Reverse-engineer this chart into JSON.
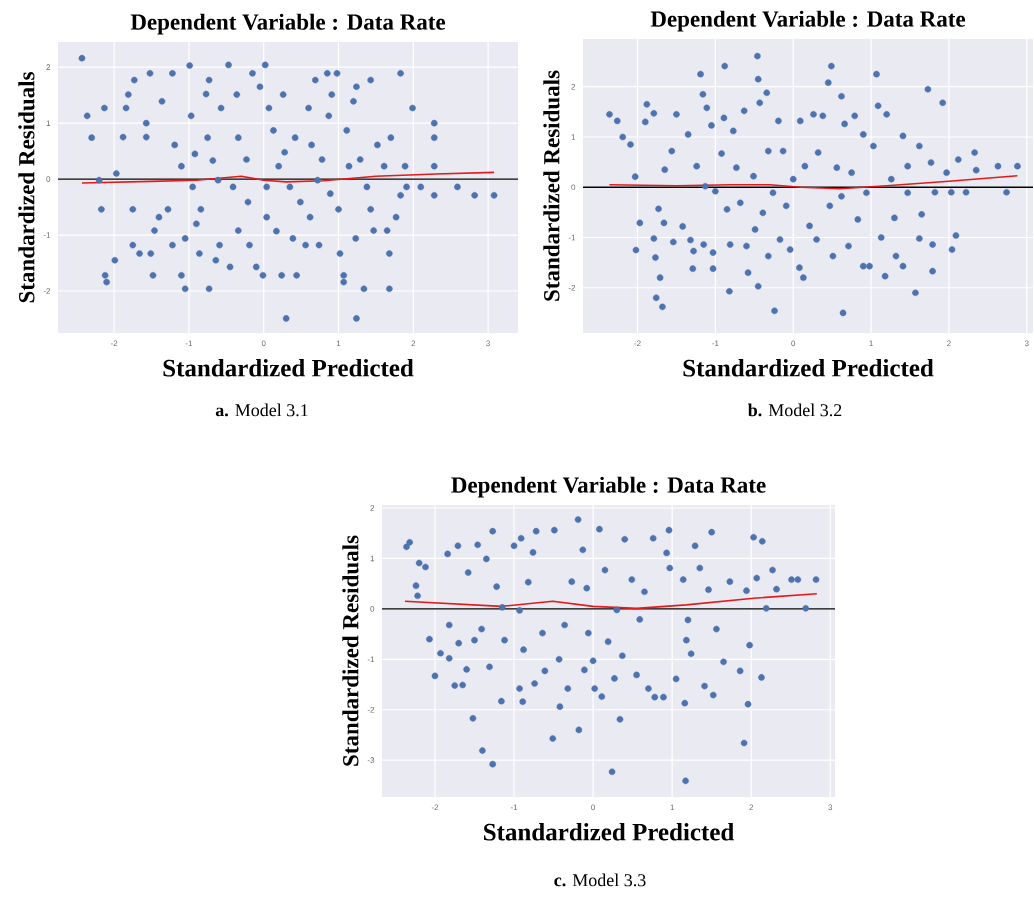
{
  "chart_data": [
    {
      "type": "scatter",
      "title": "Dependent Variable : Data Rate",
      "xlabel": "Standardized Predicted",
      "ylabel": "Standardized Residuals",
      "annotations": [
        "**a.** Model 3.1"
      ],
      "xlim": [
        -2.75,
        3.4
      ],
      "ylim": [
        -2.75,
        2.45
      ],
      "xticks": [
        -2,
        -1,
        0,
        1,
        2,
        3
      ],
      "yticks": [
        -2,
        -1,
        0,
        1,
        2
      ],
      "grid": true,
      "ref_lines": [
        {
          "axis": "y",
          "value": 0,
          "color": "#000000"
        }
      ],
      "series": [
        {
          "color": "#4c72b0",
          "marker": "circle",
          "x": [
            -2.43,
            -2.36,
            -2.3,
            -2.2,
            -2.17,
            -2.13,
            -2.12,
            -2.1,
            -1.99,
            -1.97,
            -1.88,
            -1.84,
            -1.81,
            -1.75,
            -1.73,
            -1.75,
            -1.66,
            -1.57,
            -1.57,
            -1.52,
            -1.51,
            -1.48,
            -1.46,
            -1.4,
            -1.36,
            -1.28,
            -1.22,
            -1.19,
            -1.22,
            -1.1,
            -1.1,
            -1.05,
            -1.05,
            -0.99,
            -0.97,
            -0.95,
            -0.92,
            -0.9,
            -0.86,
            -0.84,
            -0.77,
            -0.75,
            -0.73,
            -0.73,
            -0.68,
            -0.64,
            -0.61,
            -0.59,
            -0.57,
            -0.47,
            -0.45,
            -0.41,
            -0.36,
            -0.34,
            -0.34,
            -0.23,
            -0.21,
            -0.19,
            -0.15,
            -0.1,
            -0.05,
            -0.01,
            0.02,
            0.04,
            0.04,
            0.07,
            0.13,
            0.17,
            0.2,
            0.24,
            0.26,
            0.28,
            0.3,
            0.35,
            0.39,
            0.42,
            0.44,
            0.49,
            0.56,
            0.6,
            0.62,
            0.64,
            0.69,
            0.72,
            0.74,
            0.78,
            0.85,
            0.87,
            0.89,
            0.91,
            0.98,
            1.0,
            1.02,
            1.07,
            1.07,
            1.11,
            1.14,
            1.2,
            1.23,
            1.24,
            1.24,
            1.29,
            1.34,
            1.38,
            1.43,
            1.43,
            1.47,
            1.52,
            1.61,
            1.65,
            1.68,
            1.68,
            1.7,
            1.77,
            1.83,
            1.83,
            1.89,
            1.91,
            1.99,
            2.1,
            2.28,
            2.28,
            2.28,
            2.28,
            2.59,
            2.82,
            3.08
          ],
          "values": [
            2.16,
            1.13,
            0.74,
            -0.02,
            -0.54,
            1.27,
            -1.72,
            -1.84,
            -1.45,
            0.1,
            0.75,
            1.27,
            1.51,
            -0.54,
            1.77,
            -1.18,
            -1.33,
            0.75,
            1.0,
            1.89,
            -1.33,
            -1.72,
            -0.92,
            -0.68,
            1.39,
            -0.54,
            1.89,
            0.61,
            -1.18,
            0.23,
            -1.72,
            -1.06,
            -1.96,
            2.03,
            1.13,
            -0.14,
            0.45,
            -0.8,
            -1.33,
            -0.54,
            1.52,
            0.74,
            -1.96,
            1.77,
            0.33,
            -1.45,
            -0.02,
            -1.18,
            1.27,
            2.04,
            -1.57,
            -0.14,
            1.51,
            0.74,
            -0.92,
            0.35,
            -0.41,
            -1.18,
            1.89,
            -1.57,
            1.65,
            -1.72,
            2.04,
            -0.14,
            -0.68,
            1.27,
            0.87,
            -0.93,
            0.23,
            -1.72,
            1.51,
            0.48,
            -2.49,
            -0.14,
            -1.06,
            0.74,
            -1.72,
            -0.41,
            -1.18,
            1.27,
            -0.68,
            0.61,
            1.77,
            -0.02,
            -1.18,
            0.35,
            1.89,
            1.13,
            -0.26,
            1.51,
            1.89,
            -0.54,
            -1.33,
            -1.72,
            -1.84,
            0.87,
            0.23,
            1.39,
            -1.06,
            1.65,
            -2.49,
            0.35,
            -1.96,
            -0.14,
            -0.54,
            1.77,
            -0.92,
            0.61,
            0.23,
            -0.92,
            -1.96,
            -1.33,
            0.74,
            -0.68,
            1.89,
            -0.29,
            0.23,
            -0.14,
            1.27,
            -0.14,
            1.0,
            0.74,
            0.23,
            -0.29,
            -0.14,
            -0.29,
            -0.29
          ]
        },
        {
          "type": "line",
          "color": "#e41a1c",
          "marker": "none",
          "line_style": "solid",
          "x": [
            -2.43,
            -1.5,
            -0.9,
            -0.3,
            0.0,
            0.3,
            0.8,
            1.5,
            2.3,
            3.08
          ],
          "values": [
            -0.07,
            -0.04,
            -0.02,
            0.05,
            -0.02,
            -0.05,
            -0.03,
            0.05,
            0.09,
            0.12
          ]
        }
      ]
    },
    {
      "type": "scatter",
      "title": "Dependent Variable : Data Rate",
      "xlabel": "Standardized Predicted",
      "ylabel": "Standardized Residuals",
      "annotations": [
        "**b.** Model 3.2"
      ],
      "xlim": [
        -2.7,
        3.08
      ],
      "ylim": [
        -2.9,
        2.95
      ],
      "xticks": [
        -2,
        -1,
        0,
        1,
        2,
        3
      ],
      "yticks": [
        -2,
        -1,
        0,
        1,
        2
      ],
      "grid": true,
      "ref_lines": [
        {
          "axis": "y",
          "value": 0,
          "color": "#000000"
        }
      ],
      "series": [
        {
          "color": "#4c72b0",
          "marker": "circle",
          "x": [
            -2.36,
            -2.26,
            -2.19,
            -2.09,
            -2.03,
            -2.02,
            -1.97,
            -1.9,
            -1.88,
            -1.79,
            -1.79,
            -1.77,
            -1.76,
            -1.73,
            -1.71,
            -1.68,
            -1.66,
            -1.65,
            -1.56,
            -1.54,
            -1.5,
            -1.42,
            -1.35,
            -1.32,
            -1.29,
            -1.28,
            -1.24,
            -1.19,
            -1.16,
            -1.15,
            -1.13,
            -1.11,
            -1.05,
            -1.03,
            -1.03,
            -1.0,
            -0.92,
            -0.89,
            -0.88,
            -0.85,
            -0.82,
            -0.81,
            -0.77,
            -0.73,
            -0.68,
            -0.63,
            -0.6,
            -0.58,
            -0.51,
            -0.49,
            -0.46,
            -0.45,
            -0.45,
            -0.43,
            -0.39,
            -0.34,
            -0.32,
            -0.32,
            -0.26,
            -0.24,
            -0.19,
            -0.17,
            -0.13,
            -0.09,
            -0.04,
            0.0,
            0.08,
            0.09,
            0.13,
            0.15,
            0.21,
            0.26,
            0.3,
            0.32,
            0.38,
            0.45,
            0.47,
            0.49,
            0.51,
            0.56,
            0.62,
            0.64,
            0.62,
            0.66,
            0.71,
            0.75,
            0.79,
            0.83,
            0.9,
            0.9,
            0.94,
            0.98,
            1.03,
            1.07,
            1.09,
            1.13,
            1.18,
            1.2,
            1.26,
            1.3,
            1.32,
            1.41,
            1.41,
            1.47,
            1.47,
            1.62,
            1.65,
            1.62,
            1.57,
            1.73,
            1.77,
            1.79,
            1.79,
            1.82,
            1.92,
            1.97,
            2.03,
            2.04,
            2.09,
            2.12,
            2.22,
            2.33,
            2.35,
            2.63,
            2.74,
            2.88
          ],
          "values": [
            1.45,
            1.32,
            1.0,
            0.85,
            0.21,
            -1.25,
            -0.71,
            1.3,
            1.65,
            1.47,
            -1.02,
            -1.4,
            -2.2,
            -0.43,
            -1.8,
            -2.38,
            -0.71,
            0.35,
            0.72,
            -1.09,
            1.45,
            -0.78,
            1.05,
            -1.05,
            -1.62,
            -1.27,
            0.42,
            2.25,
            1.85,
            -1.14,
            0.02,
            1.58,
            1.23,
            -1.3,
            -1.62,
            -0.08,
            0.67,
            1.38,
            2.41,
            -0.44,
            -2.07,
            -1.14,
            1.12,
            0.39,
            -0.31,
            1.52,
            -1.17,
            -1.7,
            0.22,
            -0.84,
            2.61,
            2.15,
            -1.97,
            1.68,
            -0.51,
            1.88,
            0.72,
            -1.37,
            -0.11,
            -2.46,
            1.32,
            -1.04,
            0.72,
            -0.37,
            -1.24,
            0.16,
            -1.6,
            1.32,
            -1.8,
            0.42,
            -0.77,
            1.45,
            -1.04,
            0.69,
            1.42,
            2.08,
            -0.37,
            2.41,
            -1.37,
            0.39,
            1.81,
            -2.5,
            -0.18,
            1.26,
            -1.17,
            0.29,
            1.42,
            -0.64,
            1.05,
            -1.57,
            -0.11,
            -1.57,
            0.82,
            2.25,
            1.62,
            -1.0,
            -1.77,
            1.45,
            0.16,
            -0.61,
            -1.37,
            1.02,
            -1.57,
            0.42,
            -0.11,
            0.82,
            -0.54,
            -1.02,
            -2.1,
            1.95,
            0.49,
            -1.14,
            -1.67,
            -0.1,
            1.68,
            0.29,
            -0.1,
            -1.24,
            -0.96,
            0.55,
            -0.1,
            0.69,
            0.34,
            0.42,
            -0.1,
            0.42
          ]
        },
        {
          "type": "line",
          "color": "#e41a1c",
          "marker": "none",
          "line_style": "solid",
          "x": [
            -2.36,
            -1.5,
            -0.8,
            -0.3,
            0.1,
            0.6,
            1.2,
            2.0,
            2.88
          ],
          "values": [
            0.05,
            0.03,
            0.05,
            0.05,
            0.0,
            -0.03,
            0.03,
            0.12,
            0.23
          ]
        }
      ]
    },
    {
      "type": "scatter",
      "title": "Dependent Variable : Data Rate",
      "xlabel": "Standardized Predicted",
      "ylabel": "Standardized Residuals",
      "annotations": [
        "**c.** Model 3.3"
      ],
      "xlim": [
        -2.67,
        3.06
      ],
      "ylim": [
        -3.73,
        2.06
      ],
      "xticks": [
        -2,
        -1,
        0,
        1,
        2,
        3
      ],
      "yticks": [
        -3,
        -2,
        -1,
        0,
        1,
        2
      ],
      "grid": true,
      "ref_lines": [
        {
          "axis": "y",
          "value": 0,
          "color": "#000000"
        }
      ],
      "series": [
        {
          "color": "#4c72b0",
          "marker": "circle",
          "x": [
            -2.36,
            -2.32,
            -2.24,
            -2.22,
            -2.2,
            -2.12,
            -2.07,
            -2.0,
            -1.93,
            -1.84,
            -1.82,
            -1.82,
            -1.75,
            -1.71,
            -1.7,
            -1.65,
            -1.6,
            -1.58,
            -1.52,
            -1.5,
            -1.46,
            -1.41,
            -1.4,
            -1.35,
            -1.31,
            -1.27,
            -1.27,
            -1.22,
            -1.16,
            -1.15,
            -1.12,
            -1.0,
            -0.93,
            -0.93,
            -0.91,
            -0.89,
            -0.88,
            -0.82,
            -0.76,
            -0.74,
            -0.72,
            -0.64,
            -0.61,
            -0.51,
            -0.49,
            -0.43,
            -0.42,
            -0.36,
            -0.32,
            -0.27,
            -0.19,
            -0.18,
            -0.13,
            -0.11,
            -0.08,
            -0.06,
            0.0,
            0.02,
            0.08,
            0.11,
            0.15,
            0.19,
            0.24,
            0.27,
            0.3,
            0.34,
            0.37,
            0.4,
            0.49,
            0.55,
            0.59,
            0.65,
            0.7,
            0.76,
            0.78,
            0.89,
            0.93,
            0.96,
            0.97,
            1.05,
            1.14,
            1.16,
            1.17,
            1.18,
            1.2,
            1.24,
            1.29,
            1.35,
            1.41,
            1.46,
            1.5,
            1.52,
            1.56,
            1.65,
            1.73,
            1.86,
            1.91,
            1.94,
            1.96,
            1.98,
            2.03,
            2.07,
            2.13,
            2.14,
            2.19,
            2.27,
            2.32,
            2.51,
            2.59,
            2.69,
            2.82
          ],
          "values": [
            1.23,
            1.32,
            0.46,
            0.26,
            0.91,
            0.83,
            -0.6,
            -1.33,
            -0.88,
            1.09,
            -0.32,
            -0.98,
            -1.52,
            1.25,
            -0.68,
            -1.51,
            -1.2,
            0.72,
            -2.17,
            -0.62,
            1.27,
            -0.4,
            -2.81,
            0.99,
            -1.15,
            1.54,
            -3.08,
            0.44,
            -1.83,
            0.03,
            -0.62,
            1.25,
            -0.03,
            -1.58,
            1.4,
            -1.84,
            -0.81,
            0.53,
            1.12,
            -1.48,
            1.54,
            -0.48,
            -1.23,
            -2.57,
            1.56,
            -1.0,
            -1.94,
            -0.32,
            -1.58,
            0.54,
            1.77,
            -2.4,
            1.17,
            -1.21,
            0.41,
            -0.48,
            -1.03,
            -1.58,
            1.58,
            -1.74,
            0.77,
            -0.65,
            -3.23,
            -1.38,
            -0.02,
            -2.19,
            -0.93,
            1.38,
            0.58,
            -1.31,
            -0.21,
            0.34,
            -1.58,
            1.4,
            -1.75,
            -1.75,
            1.11,
            1.56,
            0.81,
            -1.39,
            0.58,
            -1.87,
            -3.41,
            -0.62,
            -0.22,
            -0.89,
            1.25,
            0.81,
            -1.53,
            0.38,
            1.52,
            -1.71,
            -0.4,
            -1.05,
            0.54,
            -1.23,
            -2.66,
            0.36,
            -1.89,
            -0.72,
            1.42,
            0.61,
            -1.36,
            1.34,
            0.01,
            0.77,
            0.39,
            0.58,
            0.58,
            0.01,
            0.58
          ]
        },
        {
          "type": "line",
          "color": "#e41a1c",
          "marker": "none",
          "line_style": "solid",
          "x": [
            -2.38,
            -1.16,
            -0.51,
            0.0,
            0.55,
            1.18,
            2.03,
            2.83
          ],
          "values": [
            0.15,
            0.05,
            0.15,
            0.05,
            0.01,
            0.08,
            0.21,
            0.3
          ]
        }
      ]
    }
  ]
}
